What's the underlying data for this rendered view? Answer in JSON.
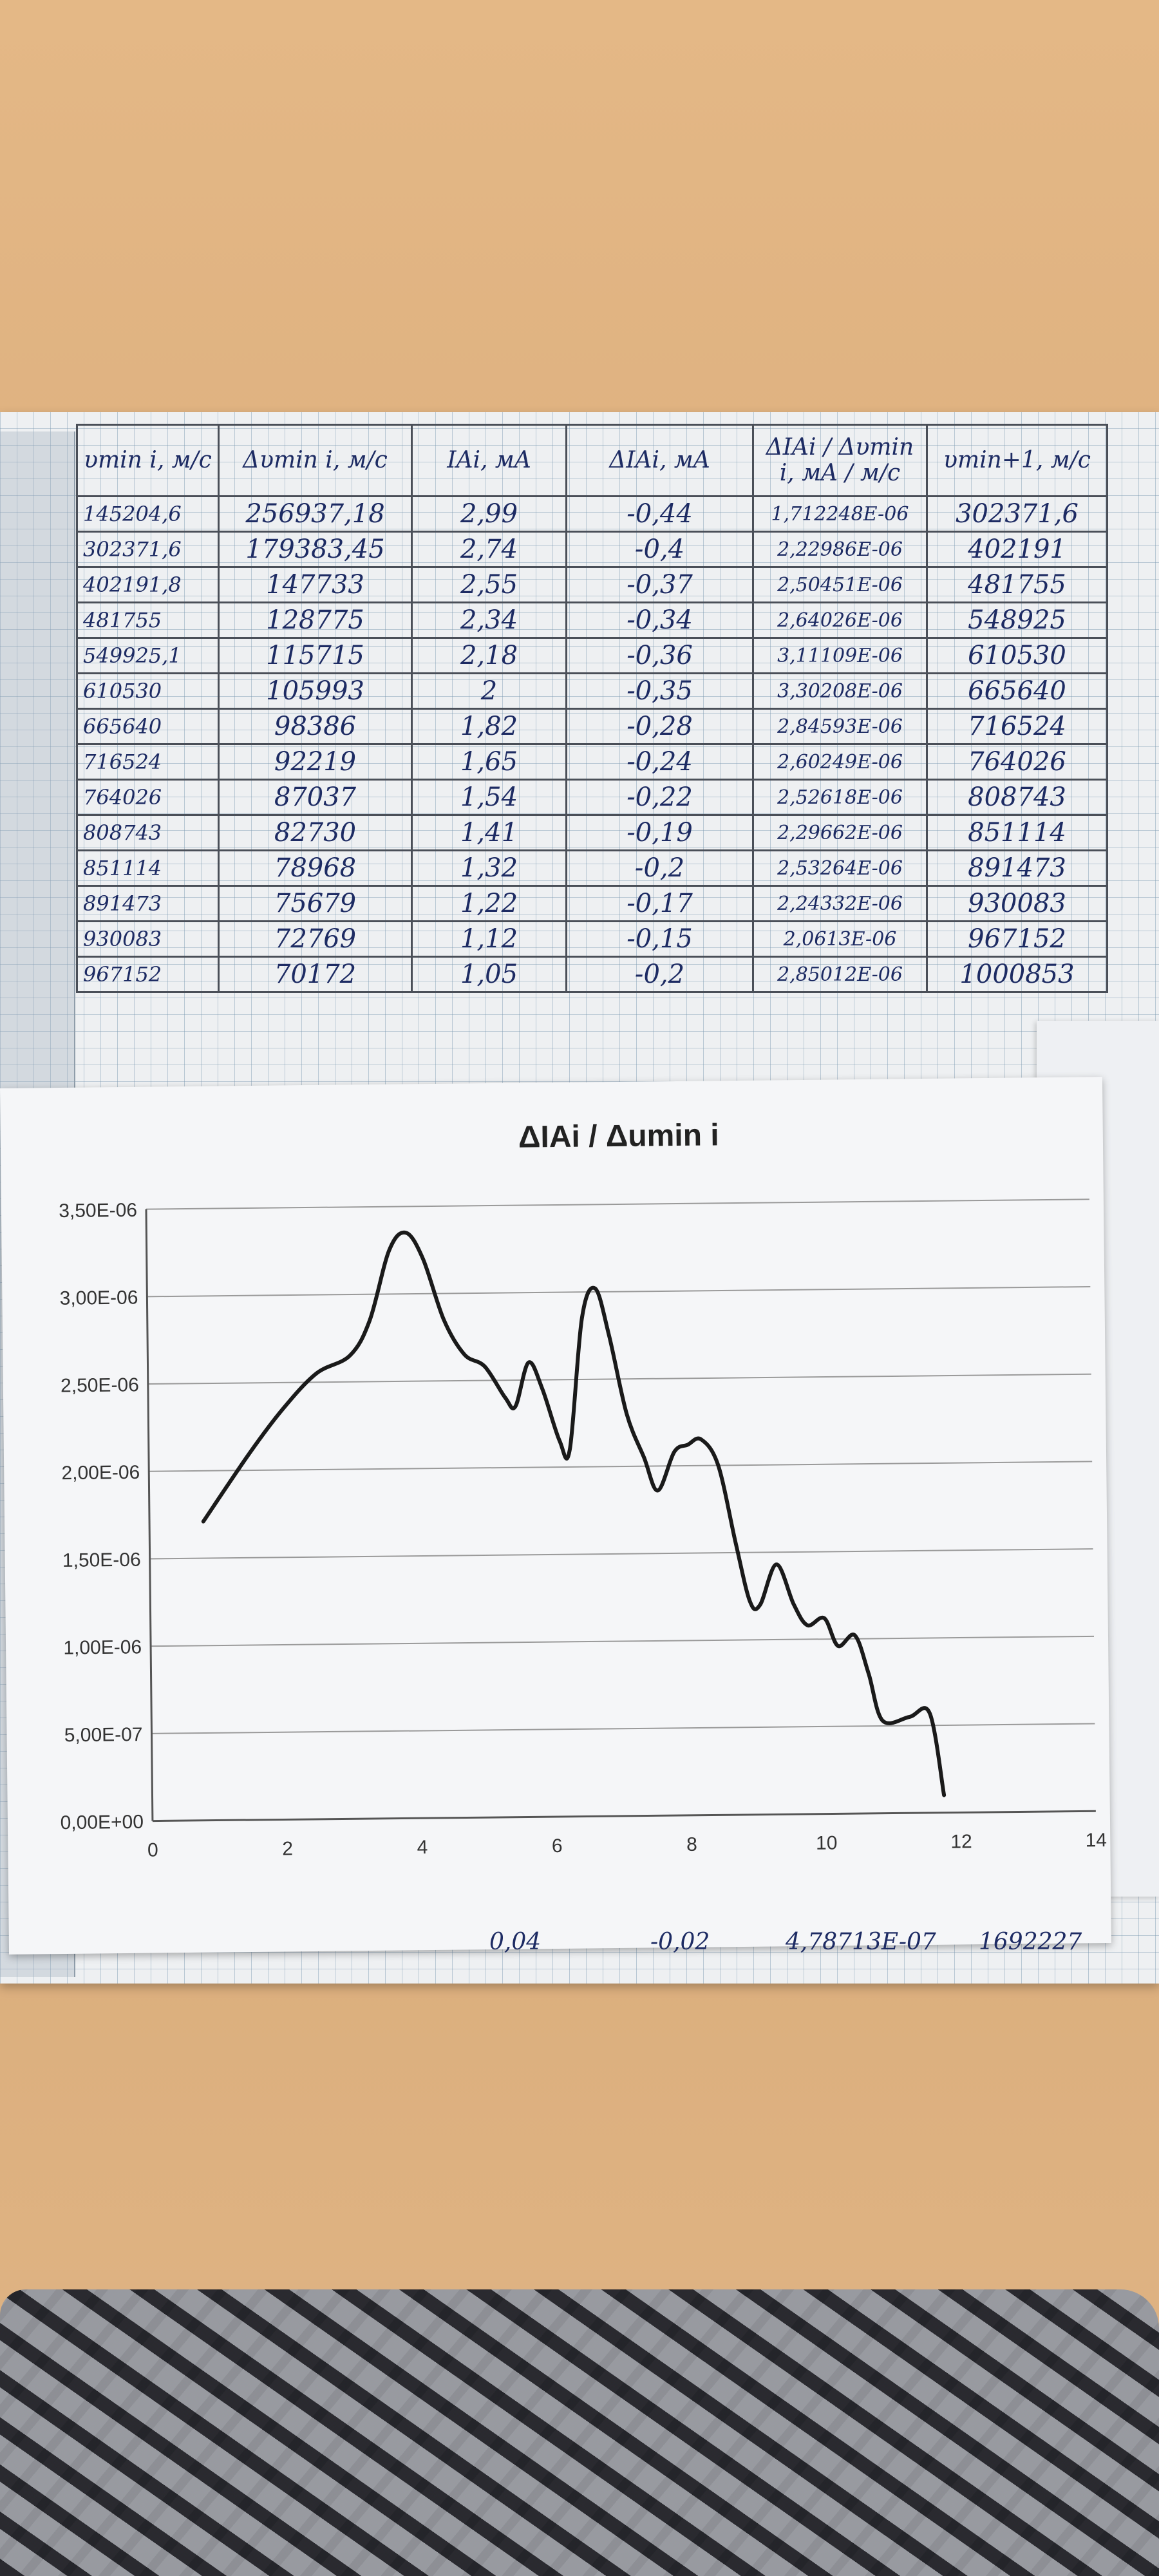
{
  "table": {
    "headers": [
      "υmin i, м/с",
      "Δυmin i, м/с",
      "IAi, мA",
      "ΔIAi, мA",
      "ΔIAi / Δυmin i, мA / м/с",
      "υmin+1, м/с"
    ],
    "rows": [
      [
        "145204,6",
        "256937,18",
        "2,99",
        "-0,44",
        "1,712248E-06",
        "302371,6"
      ],
      [
        "302371,6",
        "179383,45",
        "2,74",
        "-0,4",
        "2,22986E-06",
        "402191"
      ],
      [
        "402191,8",
        "147733",
        "2,55",
        "-0,37",
        "2,50451E-06",
        "481755"
      ],
      [
        "481755",
        "128775",
        "2,34",
        "-0,34",
        "2,64026E-06",
        "548925"
      ],
      [
        "549925,1",
        "115715",
        "2,18",
        "-0,36",
        "3,11109E-06",
        "610530"
      ],
      [
        "610530",
        "105993",
        "2",
        "-0,35",
        "3,30208E-06",
        "665640"
      ],
      [
        "665640",
        "98386",
        "1,82",
        "-0,28",
        "2,84593E-06",
        "716524"
      ],
      [
        "716524",
        "92219",
        "1,65",
        "-0,24",
        "2,60249E-06",
        "764026"
      ],
      [
        "764026",
        "87037",
        "1,54",
        "-0,22",
        "2,52618E-06",
        "808743"
      ],
      [
        "808743",
        "82730",
        "1,41",
        "-0,19",
        "2,29662E-06",
        "851114"
      ],
      [
        "851114",
        "78968",
        "1,32",
        "-0,2",
        "2,53264E-06",
        "891473"
      ],
      [
        "891473",
        "75679",
        "1,22",
        "-0,17",
        "2,24332E-06",
        "930083"
      ],
      [
        "930083",
        "72769",
        "1,12",
        "-0,15",
        "2,0613E-06",
        "967152"
      ],
      [
        "967152",
        "70172",
        "1,05",
        "-0,2",
        "2,85012E-06",
        "1000853"
      ]
    ]
  },
  "bottom_row": [
    "0,04",
    "-0,02",
    "4,78713E-07",
    "1692227"
  ],
  "chart_data": {
    "type": "line",
    "title": "ΔIAi / Δumin i",
    "xlabel": "",
    "ylabel": "",
    "xlim": [
      0,
      14
    ],
    "ylim": [
      0,
      3.5e-06
    ],
    "x_ticks": [
      0,
      2,
      4,
      6,
      8,
      10,
      12,
      14
    ],
    "x_tick_labels": [
      "0",
      "2",
      "4",
      "6",
      "8",
      "10",
      "12",
      "14"
    ],
    "y_ticks": [
      0,
      5e-07,
      1e-06,
      1.5e-06,
      2e-06,
      2.5e-06,
      3e-06,
      3.5e-06
    ],
    "y_tick_labels": [
      "0,00E+00",
      "5,00E-07",
      "1,00E-06",
      "1,50E-06",
      "2,00E-06",
      "2,50E-06",
      "3,00E-06",
      "3,50E-06"
    ],
    "grid": "horizontal",
    "series": [
      {
        "color": "#1a1a1a",
        "points": [
          [
            0.8,
            1.71e-06
          ],
          [
            1.5,
            2.1e-06
          ],
          [
            2,
            2.35e-06
          ],
          [
            2.5,
            2.55e-06
          ],
          [
            3,
            2.65e-06
          ],
          [
            3.3,
            2.85e-06
          ],
          [
            3.6,
            3.25e-06
          ],
          [
            3.85,
            3.35e-06
          ],
          [
            4.1,
            3.2e-06
          ],
          [
            4.4,
            2.85e-06
          ],
          [
            4.7,
            2.65e-06
          ],
          [
            5.0,
            2.58e-06
          ],
          [
            5.3,
            2.4e-06
          ],
          [
            5.45,
            2.35e-06
          ],
          [
            5.65,
            2.6e-06
          ],
          [
            5.85,
            2.45e-06
          ],
          [
            6.1,
            2.15e-06
          ],
          [
            6.25,
            2.1e-06
          ],
          [
            6.45,
            2.85e-06
          ],
          [
            6.65,
            3.02e-06
          ],
          [
            6.85,
            2.75e-06
          ],
          [
            7.1,
            2.3e-06
          ],
          [
            7.35,
            2.05e-06
          ],
          [
            7.55,
            1.86e-06
          ],
          [
            7.8,
            2.08e-06
          ],
          [
            8.0,
            2.12e-06
          ],
          [
            8.2,
            2.15e-06
          ],
          [
            8.45,
            2e-06
          ],
          [
            8.7,
            1.55e-06
          ],
          [
            8.9,
            1.22e-06
          ],
          [
            9.05,
            1.2e-06
          ],
          [
            9.3,
            1.43e-06
          ],
          [
            9.55,
            1.2e-06
          ],
          [
            9.75,
            1.08e-06
          ],
          [
            10.0,
            1.12e-06
          ],
          [
            10.2,
            9.6e-07
          ],
          [
            10.45,
            1.02e-06
          ],
          [
            10.65,
            8e-07
          ],
          [
            10.85,
            5.3e-07
          ],
          [
            11.25,
            5.5e-07
          ],
          [
            11.55,
            5.7e-07
          ],
          [
            11.75,
            1e-07
          ]
        ]
      }
    ]
  }
}
